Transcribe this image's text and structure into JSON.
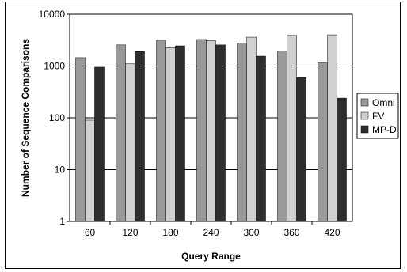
{
  "chart_data": {
    "type": "bar",
    "title": "",
    "xlabel": "Query Range",
    "ylabel": "Number of Sequence Comparisons",
    "y_scale": "log",
    "ylim": [
      1,
      10000
    ],
    "y_ticks": [
      "1",
      "10",
      "100",
      "1000",
      "10000"
    ],
    "grid": "horizontal",
    "legend_position": "right",
    "categories": [
      "60",
      "120",
      "180",
      "240",
      "300",
      "360",
      "420"
    ],
    "series": [
      {
        "name": "Omni",
        "color": "#999999",
        "values": [
          1450,
          2550,
          3150,
          3250,
          2750,
          1950,
          1150
        ]
      },
      {
        "name": "FV",
        "color": "#d0d0d0",
        "values": [
          90,
          1100,
          2250,
          3100,
          3600,
          3900,
          4000
        ]
      },
      {
        "name": "MP-D",
        "color": "#2e2e2e",
        "values": [
          950,
          1900,
          2450,
          2550,
          1550,
          600,
          240
        ]
      }
    ]
  }
}
